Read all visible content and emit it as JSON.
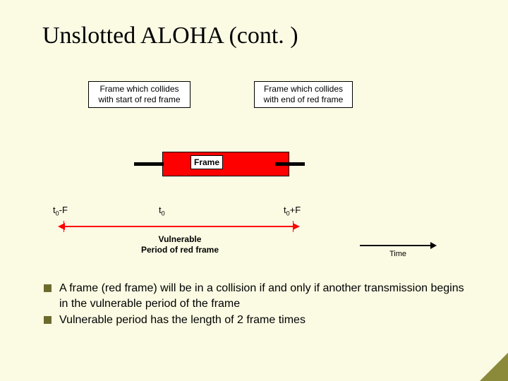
{
  "slide": {
    "title": "Unslotted ALOHA (cont. )"
  },
  "diagram": {
    "collide_start_label_l1": "Frame which collides",
    "collide_start_label_l2": "with start of red frame",
    "collide_end_label_l1": "Frame which collides",
    "collide_end_label_l2": "with end of red frame",
    "frame_label": "Frame",
    "t0_minus_F": "t",
    "t0_minus_F_sub": "0",
    "t0_minus_F_suffix": "-F",
    "t0": "t",
    "t0_sub": "0",
    "t0_plus_F": "t",
    "t0_plus_F_sub": "0",
    "t0_plus_F_suffix": "+F",
    "vuln_line1": "Vulnerable",
    "vuln_line2": "Period of red frame",
    "time_label": "Time",
    "colors": {
      "frame_fill": "#ff0000",
      "background": "#fbfbe4",
      "bullet_square": "#6b6b2e",
      "text": "#000000"
    },
    "geometry_note": "red frame spans [t0, t0+F]; vulnerable period arrow spans [t0-F, t0+F]"
  },
  "bullets": {
    "b1": "A frame (red frame) will be in a collision if and only if another transmission begins in the vulnerable period of the frame",
    "b2": "Vulnerable period has the length of 2 frame times"
  }
}
